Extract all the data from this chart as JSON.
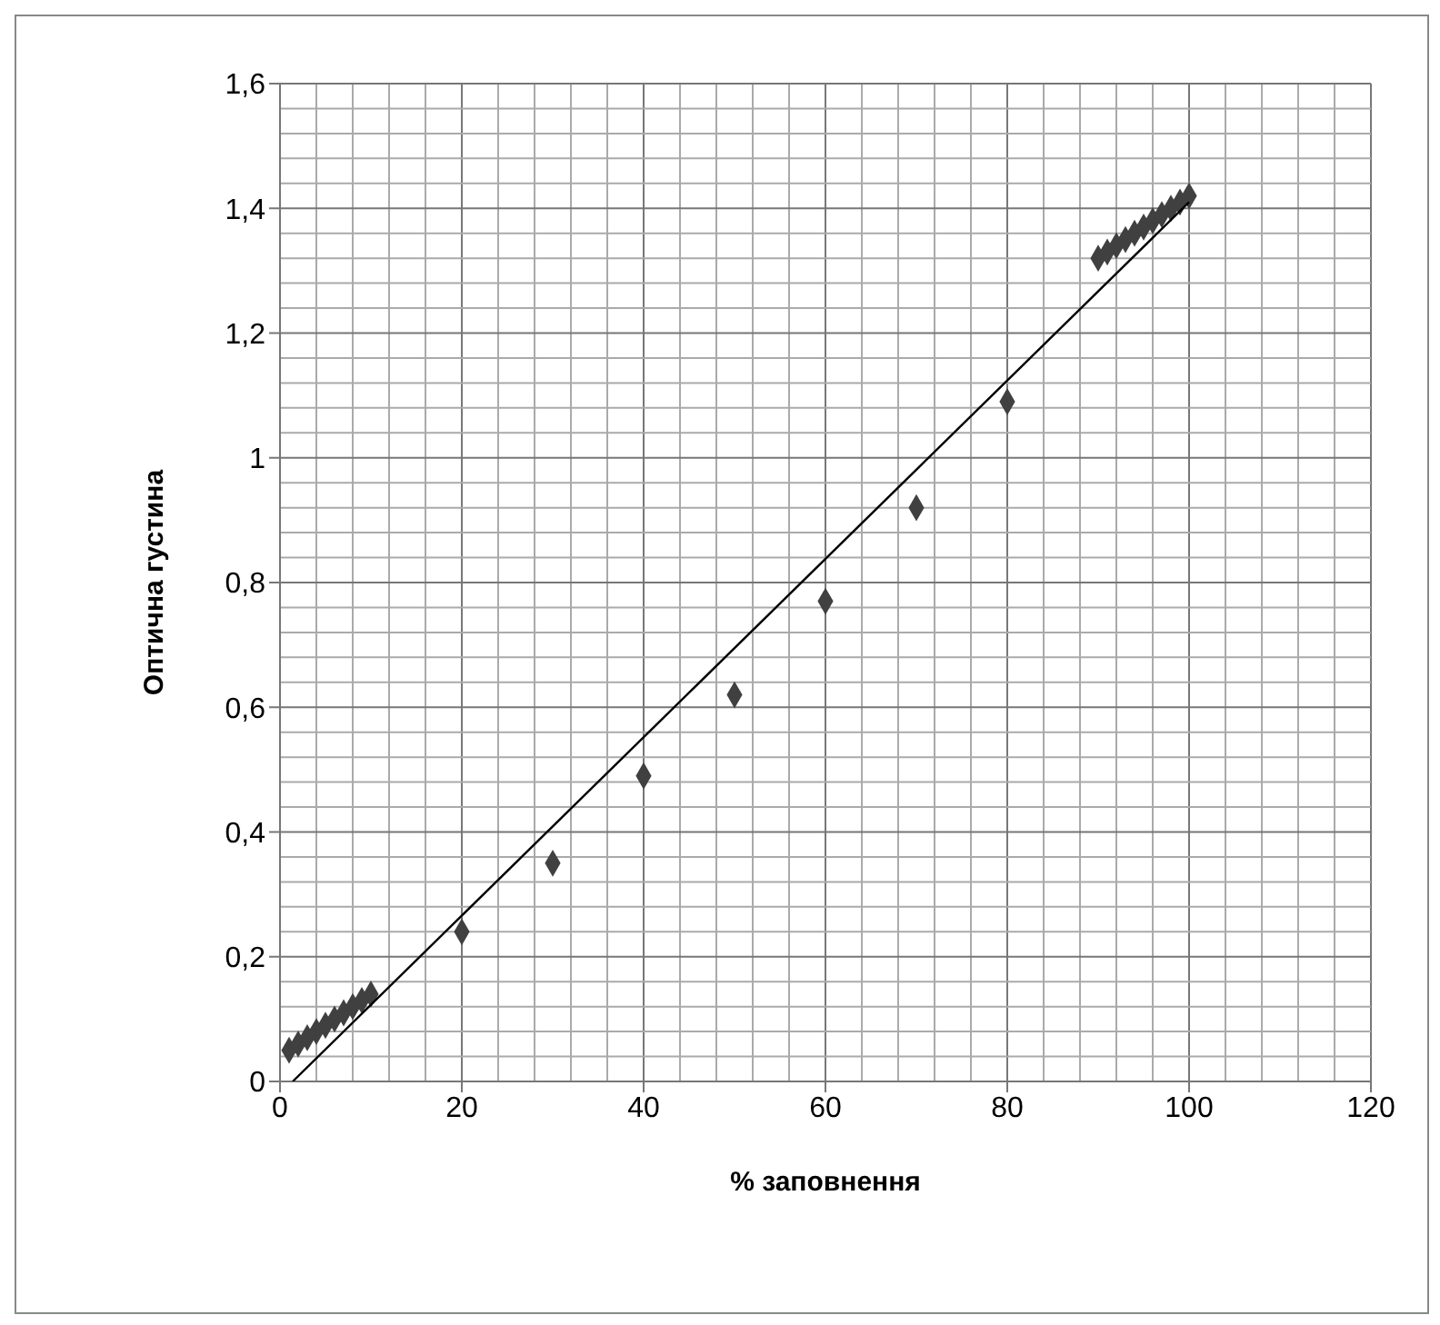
{
  "chart_data": {
    "type": "scatter",
    "xlabel": "% заповнення",
    "ylabel": "Оптична густина",
    "xlim": [
      0,
      120
    ],
    "xticks": [
      0,
      20,
      40,
      60,
      80,
      100,
      120
    ],
    "ylim": [
      0,
      1.6
    ],
    "yticks": [
      0,
      {
        "value": 0.2,
        "label": "0,2"
      },
      {
        "value": 0.4,
        "label": "0,4"
      },
      {
        "value": 0.6,
        "label": "0,6"
      },
      {
        "value": 0.8,
        "label": "0,8"
      },
      1,
      {
        "value": 1.2,
        "label": "1,2"
      },
      {
        "value": 1.4,
        "label": "1,4"
      },
      {
        "value": 1.6,
        "label": "1,6"
      }
    ],
    "grid": true,
    "series": [
      {
        "marker": "diamond",
        "color": "#404040",
        "x": [
          1,
          2,
          3,
          4,
          5,
          6,
          7,
          8,
          9,
          10,
          20,
          30,
          40,
          50,
          60,
          70,
          80,
          90,
          91,
          92,
          93,
          94,
          95,
          96,
          97,
          98,
          99,
          100
        ],
        "values": [
          0.05,
          0.06,
          0.07,
          0.08,
          0.09,
          0.1,
          0.11,
          0.12,
          0.13,
          0.14,
          0.24,
          0.35,
          0.49,
          0.62,
          0.77,
          0.92,
          1.09,
          1.32,
          1.33,
          1.34,
          1.35,
          1.36,
          1.37,
          1.38,
          1.39,
          1.4,
          1.41,
          1.42
        ]
      },
      {
        "type": "line",
        "marker": "none",
        "color": "#000000",
        "x": [
          1.4,
          100
        ],
        "values": [
          0,
          1.41
        ]
      }
    ]
  }
}
